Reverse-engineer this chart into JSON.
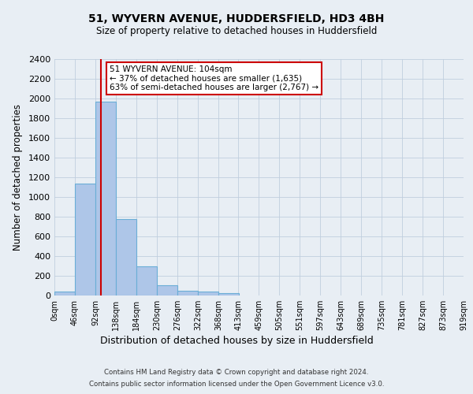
{
  "title1": "51, WYVERN AVENUE, HUDDERSFIELD, HD3 4BH",
  "title2": "Size of property relative to detached houses in Huddersfield",
  "xlabel": "Distribution of detached houses by size in Huddersfield",
  "ylabel": "Number of detached properties",
  "bar_color": "#aec6e8",
  "bar_edge_color": "#6aaed6",
  "bin_edges": [
    0,
    46,
    92,
    138,
    184,
    230,
    276,
    322,
    368,
    413,
    459,
    505,
    551,
    597,
    643,
    689,
    735,
    781,
    827,
    873,
    919
  ],
  "bin_labels": [
    "0sqm",
    "46sqm",
    "92sqm",
    "138sqm",
    "184sqm",
    "230sqm",
    "276sqm",
    "322sqm",
    "368sqm",
    "413sqm",
    "459sqm",
    "505sqm",
    "551sqm",
    "597sqm",
    "643sqm",
    "689sqm",
    "735sqm",
    "781sqm",
    "827sqm",
    "873sqm",
    "919sqm"
  ],
  "bar_heights": [
    40,
    1140,
    1970,
    780,
    300,
    105,
    50,
    40,
    25,
    0,
    0,
    0,
    0,
    0,
    0,
    0,
    0,
    0,
    0,
    0
  ],
  "ylim": [
    0,
    2400
  ],
  "yticks": [
    0,
    200,
    400,
    600,
    800,
    1000,
    1200,
    1400,
    1600,
    1800,
    2000,
    2200,
    2400
  ],
  "property_line_x": 104,
  "property_line_color": "#cc0000",
  "annotation_text": "51 WYVERN AVENUE: 104sqm\n← 37% of detached houses are smaller (1,635)\n63% of semi-detached houses are larger (2,767) →",
  "footer1": "Contains HM Land Registry data © Crown copyright and database right 2024.",
  "footer2": "Contains public sector information licensed under the Open Government Licence v3.0.",
  "background_color": "#e8eef4",
  "plot_bg_color": "#e8eef4"
}
